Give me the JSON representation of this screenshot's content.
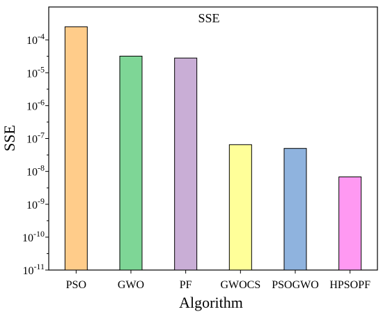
{
  "chart_data": {
    "type": "bar",
    "title": "SSE",
    "xlabel": "Algorithm",
    "ylabel": "SSE",
    "yscale": "log",
    "ylim": [
      1e-11,
      0.001
    ],
    "grid": false,
    "legend": "none",
    "categories": [
      "PSO",
      "GWO",
      "PF",
      "GWOCS",
      "PSOGWO",
      "HPSOPF"
    ],
    "values": [
      0.00025,
      3.2e-05,
      2.8e-05,
      6.5e-08,
      5e-08,
      6.8e-09
    ],
    "colors": [
      "#FFCC8A",
      "#7ED696",
      "#C9AED6",
      "#FFFF99",
      "#8FB3DE",
      "#FF99F2"
    ],
    "y_ticks": [
      {
        "base": "10",
        "exp": "-11",
        "value": 1e-11
      },
      {
        "base": "10",
        "exp": "-10",
        "value": 1e-10
      },
      {
        "base": "10",
        "exp": "-9",
        "value": 1e-09
      },
      {
        "base": "10",
        "exp": "-8",
        "value": 1e-08
      },
      {
        "base": "10",
        "exp": "-7",
        "value": 1e-07
      },
      {
        "base": "10",
        "exp": "-6",
        "value": 1e-06
      },
      {
        "base": "10",
        "exp": "-5",
        "value": 1e-05
      },
      {
        "base": "10",
        "exp": "-4",
        "value": 0.0001
      }
    ]
  }
}
